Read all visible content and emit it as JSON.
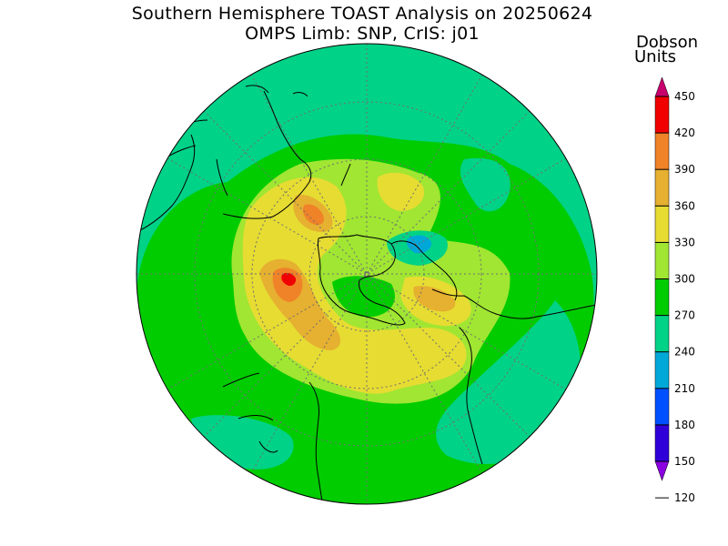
{
  "title": "Southern Hemisphere TOAST Analysis on 20250624",
  "subtitle": "OMPS Limb: SNP, CrIS: j01",
  "colorbar": {
    "unit_line1": "Dobson",
    "unit_line2": "Units",
    "ticks": [
      "450",
      "420",
      "390",
      "360",
      "330",
      "300",
      "270",
      "240",
      "210",
      "180",
      "150",
      "120"
    ],
    "bands": [
      {
        "min": 120,
        "max": 150,
        "color": "#8a00e0"
      },
      {
        "min": 150,
        "max": 180,
        "color": "#3000d8"
      },
      {
        "min": 180,
        "max": 210,
        "color": "#0050ff"
      },
      {
        "min": 210,
        "max": 240,
        "color": "#00a8d8"
      },
      {
        "min": 240,
        "max": 270,
        "color": "#00d287"
      },
      {
        "min": 270,
        "max": 300,
        "color": "#00cc00"
      },
      {
        "min": 300,
        "max": 330,
        "color": "#a0e632"
      },
      {
        "min": 330,
        "max": 360,
        "color": "#e6dc32"
      },
      {
        "min": 360,
        "max": 390,
        "color": "#e6b030"
      },
      {
        "min": 390,
        "max": 420,
        "color": "#f08228"
      },
      {
        "min": 420,
        "max": 450,
        "color": "#f00000"
      },
      {
        "min": 450,
        "max": 480,
        "color": "#c8006e"
      }
    ]
  }
}
